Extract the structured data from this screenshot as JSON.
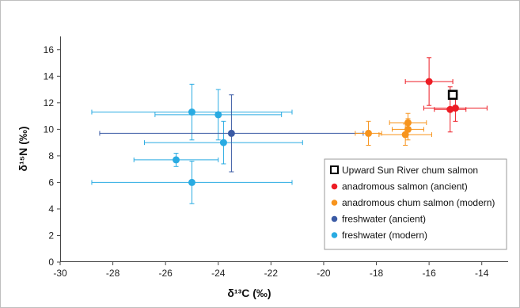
{
  "chart_data": {
    "type": "scatter",
    "title": "",
    "xlabel": "δ¹³C (‰)",
    "ylabel": "δ¹⁵N (‰)",
    "xlim": [
      -30,
      -13
    ],
    "ylim": [
      0,
      17
    ],
    "xticks": [
      -30,
      -28,
      -26,
      -24,
      -22,
      -20,
      -18,
      -16,
      -14
    ],
    "yticks": [
      0,
      2,
      4,
      6,
      8,
      10,
      12,
      14,
      16
    ],
    "grid": false,
    "legend_position": "bottom-right",
    "series": [
      {
        "name": "freshwater (modern)",
        "color": "#29abe2",
        "marker": "circle",
        "points": [
          {
            "x": -25.0,
            "y": 11.3,
            "xerr": 3.8,
            "yerr": 2.1
          },
          {
            "x": -24.0,
            "y": 11.1,
            "xerr": 2.4,
            "yerr": 1.9
          },
          {
            "x": -23.8,
            "y": 9.0,
            "xerr": 3.0,
            "yerr": 1.6
          },
          {
            "x": -25.6,
            "y": 7.7,
            "xerr": 1.6,
            "yerr": 0.5
          },
          {
            "x": -25.0,
            "y": 6.0,
            "xerr": 3.8,
            "yerr": 1.6
          }
        ]
      },
      {
        "name": "freshwater (ancient)",
        "color": "#3b5ba5",
        "marker": "circle",
        "points": [
          {
            "x": -23.5,
            "y": 9.7,
            "xerr": 5.0,
            "yerr": 2.9
          }
        ]
      },
      {
        "name": "anadromous chum salmon (modern)",
        "color": "#f7941d",
        "marker": "circle",
        "points": [
          {
            "x": -18.3,
            "y": 9.7,
            "xerr": 0.5,
            "yerr": 0.9
          },
          {
            "x": -16.8,
            "y": 10.5,
            "xerr": 0.7,
            "yerr": 0.7
          },
          {
            "x": -16.8,
            "y": 10.0,
            "xerr": 0.6,
            "yerr": 0.8
          },
          {
            "x": -16.9,
            "y": 9.6,
            "xerr": 1.0,
            "yerr": 0.8
          }
        ]
      },
      {
        "name": "anadromous salmon (ancient)",
        "color": "#ed1c24",
        "marker": "circle",
        "points": [
          {
            "x": -16.0,
            "y": 13.6,
            "xerr": 0.9,
            "yerr": 1.8
          },
          {
            "x": -15.2,
            "y": 11.5,
            "xerr": 0.6,
            "yerr": 1.7
          },
          {
            "x": -15.0,
            "y": 11.6,
            "xerr": 1.2,
            "yerr": 1.0
          }
        ]
      },
      {
        "name": "Upward Sun River chum salmon",
        "color": "#000000",
        "marker": "square-open",
        "points": [
          {
            "x": -15.1,
            "y": 12.6,
            "xerr": 0,
            "yerr": 0
          }
        ]
      }
    ],
    "legend": [
      {
        "label": "Upward Sun River chum salmon",
        "color": "#000000",
        "marker": "square-open"
      },
      {
        "label": "anadromous salmon (ancient)",
        "color": "#ed1c24",
        "marker": "circle"
      },
      {
        "label": "anadromous chum salmon (modern)",
        "color": "#f7941d",
        "marker": "circle"
      },
      {
        "label": "freshwater (ancient)",
        "color": "#3b5ba5",
        "marker": "circle"
      },
      {
        "label": "freshwater (modern)",
        "color": "#29abe2",
        "marker": "circle"
      }
    ]
  }
}
